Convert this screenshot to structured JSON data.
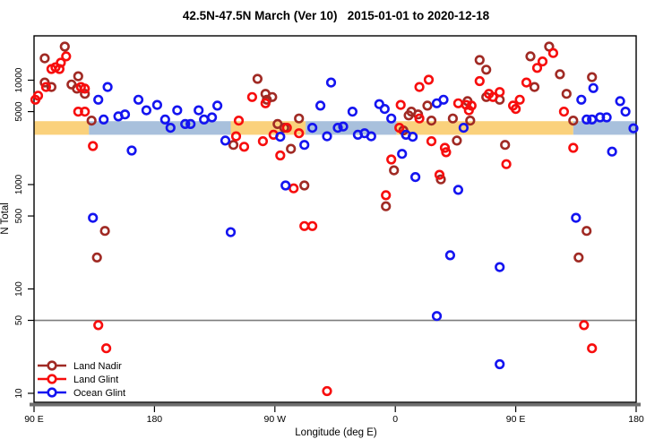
{
  "title": "42.5N-47.5N March (Ver 10)   2015-01-01 to 2020-12-18",
  "chart_data": {
    "type": "scatter",
    "title": "42.5N-47.5N March (Ver 10)   2015-01-01 to 2020-12-18",
    "xlabel": "Longitude (deg E)",
    "ylabel": "N Total",
    "grid": false,
    "x_axis": {
      "note": "longitude unrolled eastward, degrees from 90E; axis spans 450 deg",
      "range": [
        0,
        450
      ],
      "ticks": [
        {
          "pos": 0,
          "label": "90 E"
        },
        {
          "pos": 90,
          "label": "180"
        },
        {
          "pos": 180,
          "label": "90 W"
        },
        {
          "pos": 270,
          "label": "0"
        },
        {
          "pos": 360,
          "label": "90 E"
        },
        {
          "pos": 450,
          "label": "180"
        }
      ]
    },
    "y_axis": {
      "scale": "log",
      "range": [
        8.2,
        26600
      ],
      "ticks": [
        {
          "value": 10,
          "label": "10"
        },
        {
          "value": 50,
          "label": "50"
        },
        {
          "value": 100,
          "label": "100"
        },
        {
          "value": 500,
          "label": "500"
        },
        {
          "value": 1000,
          "label": "1000"
        },
        {
          "value": 5000,
          "label": "5000"
        },
        {
          "value": 10000,
          "label": "10000"
        }
      ]
    },
    "reference_line": {
      "value": 50,
      "color": "#7d7d7d"
    },
    "bands": {
      "n_range": [
        3000,
        4050
      ],
      "land_color": "#FAD17C",
      "ocean_color": "#A8C0DC",
      "segments": [
        {
          "type": "land",
          "from": 0,
          "to": 41
        },
        {
          "type": "ocean",
          "from": 41,
          "to": 147
        },
        {
          "type": "land",
          "from": 147,
          "to": 203
        },
        {
          "type": "ocean",
          "from": 203,
          "to": 271
        },
        {
          "type": "land",
          "from": 271,
          "to": 403
        },
        {
          "type": "ocean",
          "from": 403,
          "to": 450
        }
      ]
    },
    "legend": {
      "position": "bottom-left",
      "entries": [
        "Land Nadir",
        "Land Glint",
        "Ocean Glint"
      ]
    },
    "series": [
      {
        "name": "Land Nadir",
        "color": "#A02A24",
        "points": [
          [
            8,
            16200
          ],
          [
            23,
            21000
          ],
          [
            8,
            9500
          ],
          [
            13,
            8600
          ],
          [
            33,
            10900
          ],
          [
            28,
            9100
          ],
          [
            32,
            8300
          ],
          [
            38,
            7400
          ],
          [
            43,
            4100
          ],
          [
            53,
            360
          ],
          [
            47,
            200
          ],
          [
            149,
            2400
          ],
          [
            167,
            10300
          ],
          [
            173,
            7400
          ],
          [
            174,
            6500
          ],
          [
            178,
            6900
          ],
          [
            182,
            3800
          ],
          [
            187,
            3500
          ],
          [
            192,
            2200
          ],
          [
            198,
            4300
          ],
          [
            202,
            980
          ],
          [
            269,
            1370
          ],
          [
            263,
            620
          ],
          [
            282,
            5000
          ],
          [
            280,
            4600
          ],
          [
            276,
            3300
          ],
          [
            287,
            4700
          ],
          [
            294,
            5700
          ],
          [
            297,
            4100
          ],
          [
            304,
            1120
          ],
          [
            313,
            4300
          ],
          [
            316,
            2640
          ],
          [
            324,
            6300
          ],
          [
            326,
            4100
          ],
          [
            333,
            15600
          ],
          [
            338,
            12600
          ],
          [
            338,
            6900
          ],
          [
            348,
            6500
          ],
          [
            352,
            2400
          ],
          [
            371,
            16900
          ],
          [
            374,
            8600
          ],
          [
            385,
            21000
          ],
          [
            393,
            11400
          ],
          [
            398,
            7400
          ],
          [
            403,
            4100
          ],
          [
            407,
            200
          ],
          [
            413,
            360
          ],
          [
            417,
            10700
          ]
        ]
      },
      {
        "name": "Land Glint",
        "color": "#F70D0D",
        "points": [
          [
            24,
            16900
          ],
          [
            20,
            14700
          ],
          [
            16,
            13300
          ],
          [
            13,
            12800
          ],
          [
            19,
            12800
          ],
          [
            9,
            8600
          ],
          [
            3,
            7100
          ],
          [
            1,
            6500
          ],
          [
            33,
            5000
          ],
          [
            38,
            5000
          ],
          [
            35,
            8600
          ],
          [
            38,
            8300
          ],
          [
            44,
            2340
          ],
          [
            48,
            45
          ],
          [
            54,
            27
          ],
          [
            151,
            2900
          ],
          [
            153,
            4100
          ],
          [
            157,
            2300
          ],
          [
            163,
            6900
          ],
          [
            171,
            2600
          ],
          [
            173,
            6000
          ],
          [
            179,
            3000
          ],
          [
            184,
            1900
          ],
          [
            189,
            3500
          ],
          [
            194,
            920
          ],
          [
            198,
            3100
          ],
          [
            202,
            400
          ],
          [
            208,
            400
          ],
          [
            219,
            10.5
          ],
          [
            263,
            790
          ],
          [
            267,
            1740
          ],
          [
            273,
            3500
          ],
          [
            274,
            5800
          ],
          [
            288,
            8600
          ],
          [
            295,
            10100
          ],
          [
            288,
            4300
          ],
          [
            297,
            2600
          ],
          [
            303,
            1240
          ],
          [
            307,
            2250
          ],
          [
            308,
            2040
          ],
          [
            317,
            6000
          ],
          [
            323,
            5800
          ],
          [
            325,
            5150
          ],
          [
            327,
            5700
          ],
          [
            333,
            9800
          ],
          [
            340,
            7400
          ],
          [
            343,
            6900
          ],
          [
            348,
            7700
          ],
          [
            353,
            1570
          ],
          [
            358,
            5700
          ],
          [
            360,
            5300
          ],
          [
            363,
            6500
          ],
          [
            368,
            9500
          ],
          [
            376,
            13100
          ],
          [
            380,
            15100
          ],
          [
            388,
            18200
          ],
          [
            396,
            5000
          ],
          [
            403,
            2250
          ],
          [
            411,
            45
          ],
          [
            417,
            27
          ]
        ]
      },
      {
        "name": "Ocean Glint",
        "color": "#1414F0",
        "points": [
          [
            48,
            6500
          ],
          [
            52,
            4200
          ],
          [
            55,
            8600
          ],
          [
            63,
            4500
          ],
          [
            68,
            4700
          ],
          [
            73,
            2120
          ],
          [
            78,
            6500
          ],
          [
            84,
            5150
          ],
          [
            92,
            5800
          ],
          [
            98,
            4200
          ],
          [
            102,
            3500
          ],
          [
            107,
            5150
          ],
          [
            113,
            3800
          ],
          [
            117,
            3800
          ],
          [
            123,
            5150
          ],
          [
            127,
            4200
          ],
          [
            133,
            4400
          ],
          [
            137,
            5700
          ],
          [
            143,
            2640
          ],
          [
            44,
            480
          ],
          [
            147,
            350
          ],
          [
            184,
            2870
          ],
          [
            188,
            980
          ],
          [
            202,
            2400
          ],
          [
            208,
            3500
          ],
          [
            214,
            5700
          ],
          [
            222,
            9500
          ],
          [
            219,
            2900
          ],
          [
            227,
            3500
          ],
          [
            231,
            3600
          ],
          [
            238,
            5000
          ],
          [
            242,
            3000
          ],
          [
            247,
            3100
          ],
          [
            252,
            2900
          ],
          [
            258,
            5900
          ],
          [
            262,
            5300
          ],
          [
            267,
            4300
          ],
          [
            275,
            1970
          ],
          [
            278,
            3000
          ],
          [
            283,
            2870
          ],
          [
            285,
            1180
          ],
          [
            301,
            6000
          ],
          [
            306,
            6500
          ],
          [
            311,
            210
          ],
          [
            317,
            890
          ],
          [
            321,
            3500
          ],
          [
            348,
            162
          ],
          [
            301,
            55
          ],
          [
            348,
            19
          ],
          [
            409,
            6500
          ],
          [
            413,
            4200
          ],
          [
            417,
            4200
          ],
          [
            418,
            8400
          ],
          [
            423,
            4400
          ],
          [
            428,
            4400
          ],
          [
            432,
            2070
          ],
          [
            438,
            6300
          ],
          [
            442,
            5000
          ],
          [
            448,
            3460
          ],
          [
            405,
            480
          ]
        ]
      }
    ]
  }
}
